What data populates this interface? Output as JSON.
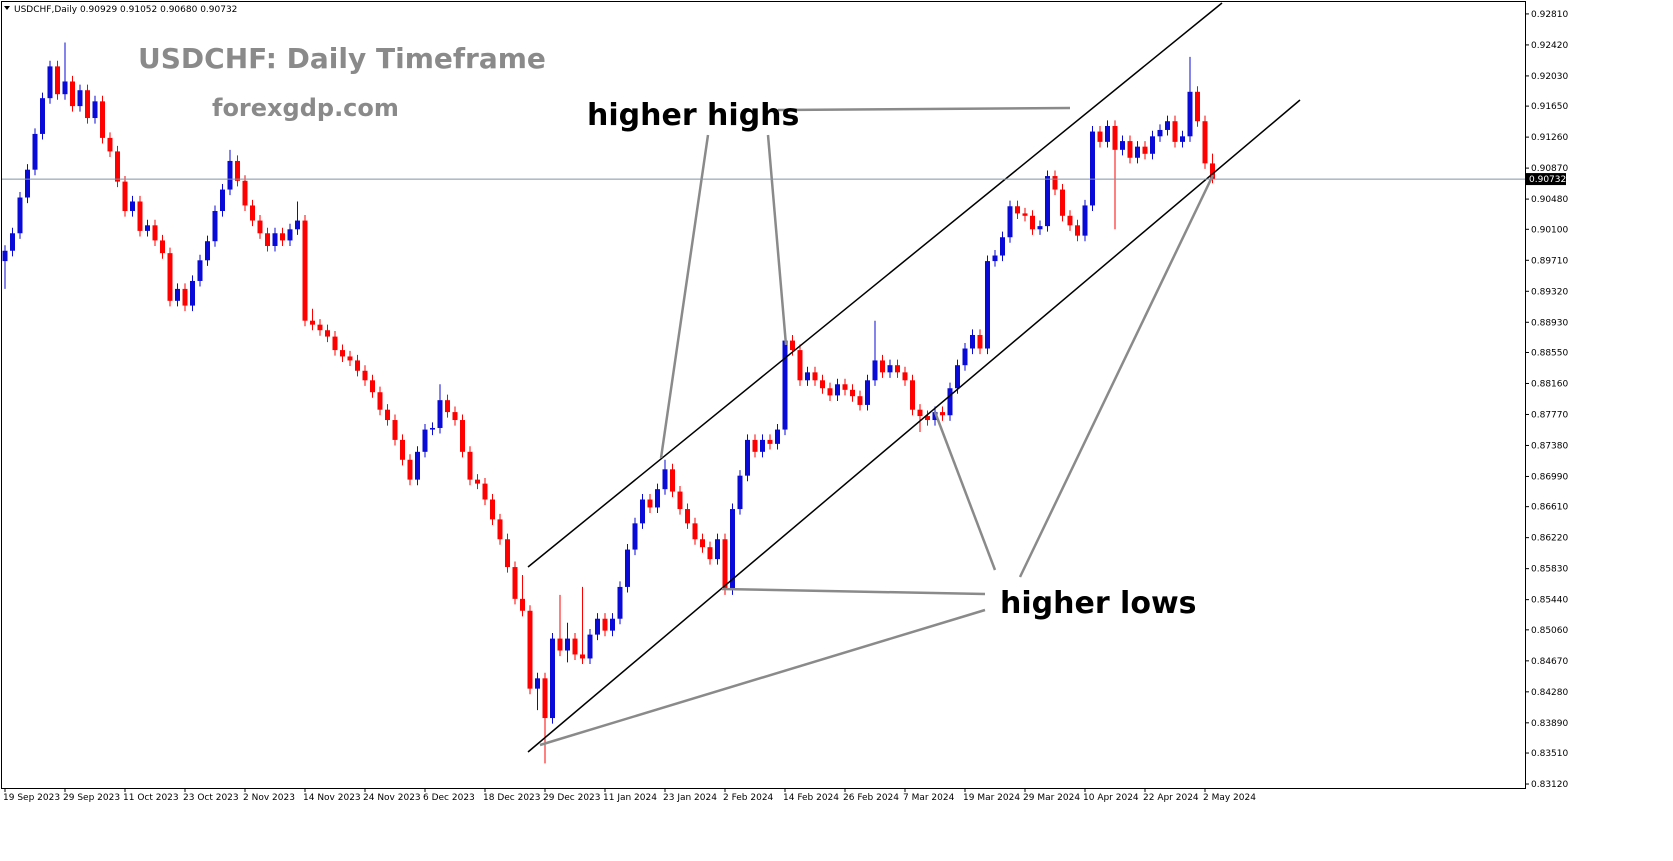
{
  "chart_data": {
    "type": "candlestick",
    "header": "USDCHF,Daily  0.90929 0.91052 0.90680 0.90732",
    "title": "USDCHF: Daily Timeframe",
    "subtitle": "forexgdp.com",
    "annotations": [
      "higher highs",
      "higher lows"
    ],
    "up_color": "#0a0ad8",
    "down_color": "#ff0000",
    "ylim": [
      0.8307,
      0.9296
    ],
    "yticks": [
      {
        "value": 0.9281,
        "label": "0.92810"
      },
      {
        "value": 0.9242,
        "label": "0.92420"
      },
      {
        "value": 0.9203,
        "label": "0.92030"
      },
      {
        "value": 0.9165,
        "label": "0.91650"
      },
      {
        "value": 0.9126,
        "label": "0.91260"
      },
      {
        "value": 0.9087,
        "label": "0.90870"
      },
      {
        "value": 0.9048,
        "label": "0.90480"
      },
      {
        "value": 0.901,
        "label": "0.90100"
      },
      {
        "value": 0.8971,
        "label": "0.89710"
      },
      {
        "value": 0.8932,
        "label": "0.89320"
      },
      {
        "value": 0.8893,
        "label": "0.88930"
      },
      {
        "value": 0.8855,
        "label": "0.88550"
      },
      {
        "value": 0.8816,
        "label": "0.88160"
      },
      {
        "value": 0.8777,
        "label": "0.87770"
      },
      {
        "value": 0.8738,
        "label": "0.87380"
      },
      {
        "value": 0.8699,
        "label": "0.86990"
      },
      {
        "value": 0.8661,
        "label": "0.86610"
      },
      {
        "value": 0.8622,
        "label": "0.86220"
      },
      {
        "value": 0.8583,
        "label": "0.85830"
      },
      {
        "value": 0.8544,
        "label": "0.85440"
      },
      {
        "value": 0.8506,
        "label": "0.85060"
      },
      {
        "value": 0.8467,
        "label": "0.84670"
      },
      {
        "value": 0.8428,
        "label": "0.84280"
      },
      {
        "value": 0.8389,
        "label": "0.83890"
      },
      {
        "value": 0.8351,
        "label": "0.83510"
      },
      {
        "value": 0.8312,
        "label": "0.83120"
      }
    ],
    "current_price": {
      "value": 0.90732,
      "label": "0.90732"
    },
    "categories": [
      "19 Sep 2023",
      null,
      null,
      null,
      null,
      null,
      null,
      null,
      "29 Sep 2023",
      null,
      null,
      null,
      null,
      null,
      null,
      null,
      "11 Oct 2023",
      null,
      null,
      null,
      null,
      null,
      null,
      null,
      "23 Oct 2023",
      null,
      null,
      null,
      null,
      null,
      null,
      null,
      "2 Nov 2023",
      null,
      null,
      null,
      null,
      null,
      null,
      null,
      "14 Nov 2023",
      null,
      null,
      null,
      null,
      null,
      null,
      null,
      "24 Nov 2023",
      null,
      null,
      null,
      null,
      null,
      null,
      null,
      "6 Dec 2023",
      null,
      null,
      null,
      null,
      null,
      null,
      null,
      "18 Dec 2023",
      null,
      null,
      null,
      null,
      null,
      null,
      null,
      "29 Dec 2023",
      null,
      null,
      null,
      null,
      null,
      null,
      null,
      "11 Jan 2024",
      null,
      null,
      null,
      null,
      null,
      null,
      null,
      "23 Jan 2024",
      null,
      null,
      null,
      null,
      null,
      null,
      null,
      "2 Feb 2024",
      null,
      null,
      null,
      null,
      null,
      null,
      null,
      "14 Feb 2024",
      null,
      null,
      null,
      null,
      null,
      null,
      null,
      "26 Feb 2024",
      null,
      null,
      null,
      null,
      null,
      null,
      null,
      "7 Mar 2024",
      null,
      null,
      null,
      null,
      null,
      null,
      null,
      "19 Mar 2024",
      null,
      null,
      null,
      null,
      null,
      null,
      null,
      "29 Mar 2024",
      null,
      null,
      null,
      null,
      null,
      null,
      null,
      "10 Apr 2024",
      null,
      null,
      null,
      null,
      null,
      null,
      null,
      "22 Apr 2024",
      null,
      null,
      null,
      null,
      null,
      null,
      null,
      "2 May 2024",
      null
    ],
    "ohlc": [
      [
        0.897,
        0.899,
        0.8935,
        0.8983
      ],
      [
        0.8983,
        0.9012,
        0.8976,
        0.9005
      ],
      [
        0.9005,
        0.9057,
        0.8998,
        0.905
      ],
      [
        0.905,
        0.9092,
        0.9043,
        0.9085
      ],
      [
        0.9085,
        0.9137,
        0.9078,
        0.913
      ],
      [
        0.913,
        0.9182,
        0.9123,
        0.9175
      ],
      [
        0.9175,
        0.9222,
        0.9168,
        0.9215
      ],
      [
        0.9215,
        0.9222,
        0.9173,
        0.918
      ],
      [
        0.918,
        0.9245,
        0.9173,
        0.9196
      ],
      [
        0.9196,
        0.9203,
        0.9158,
        0.9165
      ],
      [
        0.9165,
        0.9192,
        0.9158,
        0.9185
      ],
      [
        0.9185,
        0.9192,
        0.9143,
        0.915
      ],
      [
        0.915,
        0.9178,
        0.9143,
        0.9171
      ],
      [
        0.9171,
        0.9178,
        0.9118,
        0.9125
      ],
      [
        0.9125,
        0.9132,
        0.9101,
        0.9108
      ],
      [
        0.9108,
        0.9115,
        0.9063,
        0.907
      ],
      [
        0.907,
        0.9077,
        0.9026,
        0.9033
      ],
      [
        0.9033,
        0.9052,
        0.9026,
        0.9045
      ],
      [
        0.9045,
        0.9052,
        0.9001,
        0.9008
      ],
      [
        0.9008,
        0.9022,
        0.9001,
        0.9015
      ],
      [
        0.9015,
        0.9022,
        0.8989,
        0.8996
      ],
      [
        0.8996,
        0.9003,
        0.8973,
        0.898
      ],
      [
        0.898,
        0.8987,
        0.8913,
        0.892
      ],
      [
        0.892,
        0.8942,
        0.8913,
        0.8935
      ],
      [
        0.8935,
        0.8942,
        0.8907,
        0.8914
      ],
      [
        0.8914,
        0.8952,
        0.8907,
        0.8945
      ],
      [
        0.8945,
        0.8978,
        0.8938,
        0.8971
      ],
      [
        0.8971,
        0.9002,
        0.8964,
        0.8995
      ],
      [
        0.8995,
        0.904,
        0.8988,
        0.9033
      ],
      [
        0.9033,
        0.9067,
        0.9026,
        0.906
      ],
      [
        0.906,
        0.911,
        0.9053,
        0.9096
      ],
      [
        0.9096,
        0.9103,
        0.9064,
        0.9071
      ],
      [
        0.9071,
        0.9078,
        0.9033,
        0.904
      ],
      [
        0.904,
        0.9047,
        0.9014,
        0.9021
      ],
      [
        0.9021,
        0.9028,
        0.8998,
        0.9005
      ],
      [
        0.9005,
        0.9012,
        0.8982,
        0.8989
      ],
      [
        0.8989,
        0.9012,
        0.8982,
        0.9005
      ],
      [
        0.9005,
        0.9012,
        0.8989,
        0.8996
      ],
      [
        0.8996,
        0.9017,
        0.8989,
        0.901
      ],
      [
        0.901,
        0.9045,
        0.9003,
        0.9021
      ],
      [
        0.9021,
        0.9028,
        0.8888,
        0.8895
      ],
      [
        0.8895,
        0.891,
        0.8883,
        0.889
      ],
      [
        0.889,
        0.8897,
        0.8876,
        0.8883
      ],
      [
        0.8883,
        0.889,
        0.8868,
        0.8875
      ],
      [
        0.8875,
        0.8882,
        0.8851,
        0.8858
      ],
      [
        0.8858,
        0.8865,
        0.8843,
        0.885
      ],
      [
        0.885,
        0.8857,
        0.8838,
        0.8845
      ],
      [
        0.8845,
        0.8852,
        0.8825,
        0.8832
      ],
      [
        0.8832,
        0.8839,
        0.8813,
        0.882
      ],
      [
        0.882,
        0.8827,
        0.8798,
        0.8805
      ],
      [
        0.8805,
        0.8812,
        0.8776,
        0.8783
      ],
      [
        0.8783,
        0.879,
        0.8763,
        0.877
      ],
      [
        0.877,
        0.8777,
        0.8738,
        0.8745
      ],
      [
        0.8745,
        0.8752,
        0.8713,
        0.872
      ],
      [
        0.872,
        0.8727,
        0.8688,
        0.8695
      ],
      [
        0.8695,
        0.8737,
        0.8688,
        0.873
      ],
      [
        0.873,
        0.8765,
        0.8723,
        0.8758
      ],
      [
        0.8758,
        0.8767,
        0.8751,
        0.876
      ],
      [
        0.876,
        0.8815,
        0.8753,
        0.8795
      ],
      [
        0.8795,
        0.8802,
        0.8773,
        0.878
      ],
      [
        0.878,
        0.8787,
        0.8763,
        0.877
      ],
      [
        0.877,
        0.8777,
        0.8723,
        0.873
      ],
      [
        0.873,
        0.8737,
        0.8688,
        0.8695
      ],
      [
        0.8695,
        0.8702,
        0.8683,
        0.869
      ],
      [
        0.869,
        0.8697,
        0.8663,
        0.867
      ],
      [
        0.867,
        0.8677,
        0.8638,
        0.8645
      ],
      [
        0.8645,
        0.8652,
        0.8613,
        0.862
      ],
      [
        0.862,
        0.8627,
        0.8578,
        0.8585
      ],
      [
        0.8585,
        0.8592,
        0.8538,
        0.8545
      ],
      [
        0.8545,
        0.8575,
        0.8523,
        0.853
      ],
      [
        0.853,
        0.8537,
        0.8425,
        0.8432
      ],
      [
        0.8432,
        0.8452,
        0.8405,
        0.8445
      ],
      [
        0.8445,
        0.8452,
        0.8338,
        0.8395
      ],
      [
        0.8395,
        0.8502,
        0.8388,
        0.8495
      ],
      [
        0.8495,
        0.855,
        0.8473,
        0.848
      ],
      [
        0.848,
        0.8515,
        0.8465,
        0.8495
      ],
      [
        0.8495,
        0.8502,
        0.8468,
        0.8475
      ],
      [
        0.8475,
        0.856,
        0.8463,
        0.847
      ],
      [
        0.847,
        0.8507,
        0.8463,
        0.85
      ],
      [
        0.85,
        0.8527,
        0.8493,
        0.852
      ],
      [
        0.852,
        0.8527,
        0.8498,
        0.8505
      ],
      [
        0.8505,
        0.8527,
        0.8498,
        0.852
      ],
      [
        0.852,
        0.8567,
        0.8513,
        0.856
      ],
      [
        0.856,
        0.8614,
        0.8553,
        0.8607
      ],
      [
        0.8607,
        0.8647,
        0.86,
        0.864
      ],
      [
        0.864,
        0.8677,
        0.8633,
        0.867
      ],
      [
        0.867,
        0.8677,
        0.8653,
        0.866
      ],
      [
        0.866,
        0.869,
        0.8653,
        0.8683
      ],
      [
        0.8683,
        0.872,
        0.8676,
        0.8708
      ],
      [
        0.8708,
        0.8715,
        0.8673,
        0.868
      ],
      [
        0.868,
        0.8687,
        0.8651,
        0.8658
      ],
      [
        0.8658,
        0.8665,
        0.8633,
        0.864
      ],
      [
        0.864,
        0.8647,
        0.8613,
        0.862
      ],
      [
        0.862,
        0.8627,
        0.8603,
        0.861
      ],
      [
        0.861,
        0.8617,
        0.8588,
        0.8595
      ],
      [
        0.8595,
        0.8627,
        0.8588,
        0.862
      ],
      [
        0.862,
        0.8627,
        0.855,
        0.8557
      ],
      [
        0.8557,
        0.8665,
        0.855,
        0.8658
      ],
      [
        0.8658,
        0.8707,
        0.8651,
        0.87
      ],
      [
        0.87,
        0.8752,
        0.8693,
        0.8745
      ],
      [
        0.8745,
        0.8752,
        0.8723,
        0.873
      ],
      [
        0.873,
        0.8752,
        0.8723,
        0.8745
      ],
      [
        0.8745,
        0.8752,
        0.8733,
        0.874
      ],
      [
        0.874,
        0.8765,
        0.8733,
        0.8758
      ],
      [
        0.8758,
        0.8885,
        0.8751,
        0.887
      ],
      [
        0.887,
        0.8877,
        0.8851,
        0.8858
      ],
      [
        0.8858,
        0.8865,
        0.8813,
        0.882
      ],
      [
        0.882,
        0.8837,
        0.8813,
        0.883
      ],
      [
        0.883,
        0.8837,
        0.8813,
        0.882
      ],
      [
        0.882,
        0.8827,
        0.8803,
        0.881
      ],
      [
        0.881,
        0.8817,
        0.8794,
        0.8801
      ],
      [
        0.8801,
        0.8822,
        0.8794,
        0.8815
      ],
      [
        0.8815,
        0.8822,
        0.8801,
        0.8808
      ],
      [
        0.8808,
        0.8815,
        0.8793,
        0.88
      ],
      [
        0.88,
        0.8807,
        0.8782,
        0.8789
      ],
      [
        0.8789,
        0.8827,
        0.8782,
        0.882
      ],
      [
        0.882,
        0.8895,
        0.8813,
        0.8845
      ],
      [
        0.8845,
        0.8852,
        0.8823,
        0.883
      ],
      [
        0.883,
        0.8846,
        0.8823,
        0.8839
      ],
      [
        0.8839,
        0.8846,
        0.8823,
        0.883
      ],
      [
        0.883,
        0.8837,
        0.8813,
        0.882
      ],
      [
        0.882,
        0.8827,
        0.8776,
        0.8783
      ],
      [
        0.8783,
        0.879,
        0.8755,
        0.8775
      ],
      [
        0.8775,
        0.8782,
        0.8763,
        0.877
      ],
      [
        0.877,
        0.8787,
        0.8763,
        0.878
      ],
      [
        0.878,
        0.8787,
        0.8769,
        0.8776
      ],
      [
        0.8776,
        0.8817,
        0.8769,
        0.881
      ],
      [
        0.881,
        0.8846,
        0.8803,
        0.8839
      ],
      [
        0.8839,
        0.8867,
        0.8832,
        0.886
      ],
      [
        0.886,
        0.8884,
        0.8853,
        0.8877
      ],
      [
        0.8877,
        0.8884,
        0.8853,
        0.886
      ],
      [
        0.886,
        0.8977,
        0.8853,
        0.897
      ],
      [
        0.897,
        0.8984,
        0.8963,
        0.8977
      ],
      [
        0.8977,
        0.9007,
        0.897,
        0.9
      ],
      [
        0.9,
        0.9046,
        0.8993,
        0.9039
      ],
      [
        0.9039,
        0.9046,
        0.9023,
        0.903
      ],
      [
        0.903,
        0.9037,
        0.902,
        0.9027
      ],
      [
        0.9027,
        0.9034,
        0.9003,
        0.901
      ],
      [
        0.901,
        0.9021,
        0.9003,
        0.9014
      ],
      [
        0.9014,
        0.9084,
        0.9007,
        0.9077
      ],
      [
        0.9077,
        0.9084,
        0.9053,
        0.906
      ],
      [
        0.906,
        0.9067,
        0.902,
        0.9027
      ],
      [
        0.9027,
        0.9034,
        0.9008,
        0.9015
      ],
      [
        0.9015,
        0.9022,
        0.8995,
        0.9002
      ],
      [
        0.9002,
        0.9047,
        0.8995,
        0.904
      ],
      [
        0.904,
        0.914,
        0.9033,
        0.9133
      ],
      [
        0.9133,
        0.914,
        0.9113,
        0.912
      ],
      [
        0.912,
        0.9147,
        0.9113,
        0.914
      ],
      [
        0.914,
        0.9147,
        0.901,
        0.911
      ],
      [
        0.911,
        0.9128,
        0.9103,
        0.9121
      ],
      [
        0.9121,
        0.9128,
        0.9093,
        0.91
      ],
      [
        0.91,
        0.9121,
        0.9093,
        0.9114
      ],
      [
        0.9114,
        0.9121,
        0.9098,
        0.9105
      ],
      [
        0.9105,
        0.9134,
        0.9098,
        0.9127
      ],
      [
        0.9127,
        0.9142,
        0.912,
        0.9135
      ],
      [
        0.9135,
        0.9153,
        0.9128,
        0.9146
      ],
      [
        0.9146,
        0.9153,
        0.9113,
        0.912
      ],
      [
        0.912,
        0.9134,
        0.9113,
        0.9127
      ],
      [
        0.9127,
        0.9227,
        0.912,
        0.9183
      ],
      [
        0.9183,
        0.919,
        0.9139,
        0.9146
      ],
      [
        0.9146,
        0.9153,
        0.9086,
        0.9093
      ],
      [
        0.90929,
        0.91052,
        0.9068,
        0.90732
      ]
    ]
  }
}
